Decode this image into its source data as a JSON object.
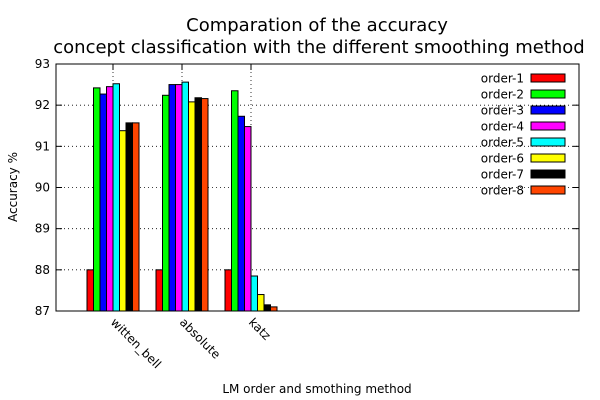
{
  "chart_data": {
    "type": "bar",
    "title_lines": [
      "Comparation of the accuracy",
      "concept classification with the different smoothing method"
    ],
    "xlabel": "LM order and smothing method",
    "ylabel": "Accuracy %",
    "ylim": [
      87,
      93
    ],
    "yticks": [
      87,
      88,
      89,
      90,
      91,
      92,
      93
    ],
    "categories": [
      "witten_bell",
      "absolute",
      "katz"
    ],
    "grid": "dotted",
    "legend_position": "top-right",
    "series": [
      {
        "name": "order-1",
        "color": "#ff0000",
        "values": [
          88.0,
          88.0,
          88.0
        ]
      },
      {
        "name": "order-2",
        "color": "#00ff00",
        "values": [
          92.42,
          92.24,
          92.35
        ]
      },
      {
        "name": "order-3",
        "color": "#0000ff",
        "values": [
          92.27,
          92.5,
          91.73
        ]
      },
      {
        "name": "order-4",
        "color": "#ff00ff",
        "values": [
          92.45,
          92.5,
          91.48
        ]
      },
      {
        "name": "order-5",
        "color": "#00ffff",
        "values": [
          92.52,
          92.56,
          87.85
        ]
      },
      {
        "name": "order-6",
        "color": "#ffff00",
        "values": [
          91.38,
          92.08,
          87.4
        ]
      },
      {
        "name": "order-7",
        "color": "#000000",
        "values": [
          91.57,
          92.18,
          87.15
        ]
      },
      {
        "name": "order-8",
        "color": "#ff4500",
        "values": [
          91.57,
          92.16,
          87.1
        ]
      }
    ]
  }
}
